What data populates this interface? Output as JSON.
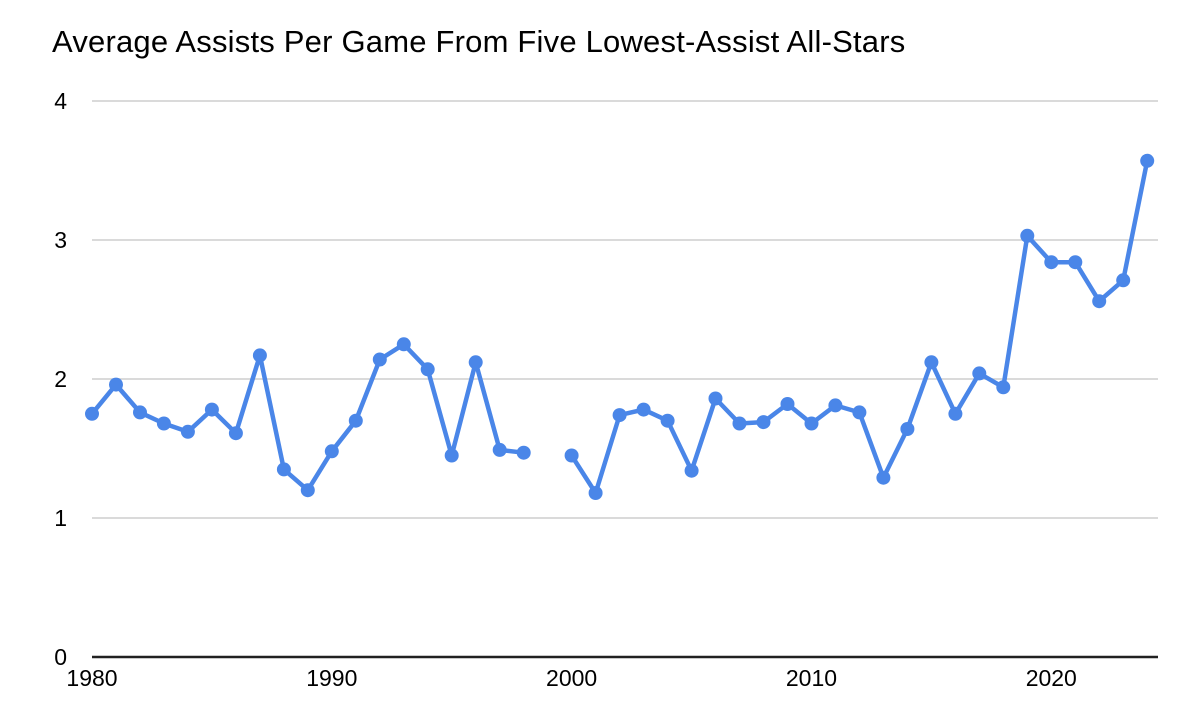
{
  "chart": {
    "line_color": "#4a86e8",
    "grid_color": "#d4d4d4",
    "axis_color": "#212121",
    "text_color": "#000000",
    "background": "#ffffff"
  },
  "chart_data": {
    "type": "line",
    "title": "Average Assists Per Game From Five Lowest-Assist All-Stars",
    "xlabel": "",
    "ylabel": "",
    "x": [
      1980,
      1981,
      1982,
      1983,
      1984,
      1985,
      1986,
      1987,
      1988,
      1989,
      1990,
      1991,
      1992,
      1993,
      1994,
      1995,
      1996,
      1997,
      1998,
      1999,
      2000,
      2001,
      2002,
      2003,
      2004,
      2005,
      2006,
      2007,
      2008,
      2009,
      2010,
      2011,
      2012,
      2013,
      2014,
      2015,
      2016,
      2017,
      2018,
      2019,
      2020,
      2021,
      2022,
      2023,
      2024
    ],
    "values": [
      1.75,
      1.96,
      1.76,
      1.68,
      1.62,
      1.78,
      1.61,
      2.17,
      1.35,
      1.2,
      1.48,
      1.7,
      2.14,
      2.25,
      2.07,
      1.45,
      2.12,
      1.49,
      1.47,
      null,
      1.45,
      1.18,
      1.74,
      1.78,
      1.7,
      1.34,
      1.86,
      1.68,
      1.69,
      1.82,
      1.68,
      1.81,
      1.76,
      1.29,
      1.64,
      2.12,
      1.75,
      2.04,
      1.94,
      3.03,
      2.84,
      2.84,
      2.56,
      2.71,
      3.57
    ],
    "gap_years": [
      1999
    ],
    "x_ticks": [
      1980,
      1990,
      2000,
      2010,
      2020
    ],
    "y_ticks": [
      0,
      1,
      2,
      3,
      4
    ],
    "xlim": [
      1980,
      2024.45
    ],
    "ylim": [
      0,
      4
    ],
    "grid": "horizontal-only",
    "legend": "none",
    "marker": "circle"
  }
}
